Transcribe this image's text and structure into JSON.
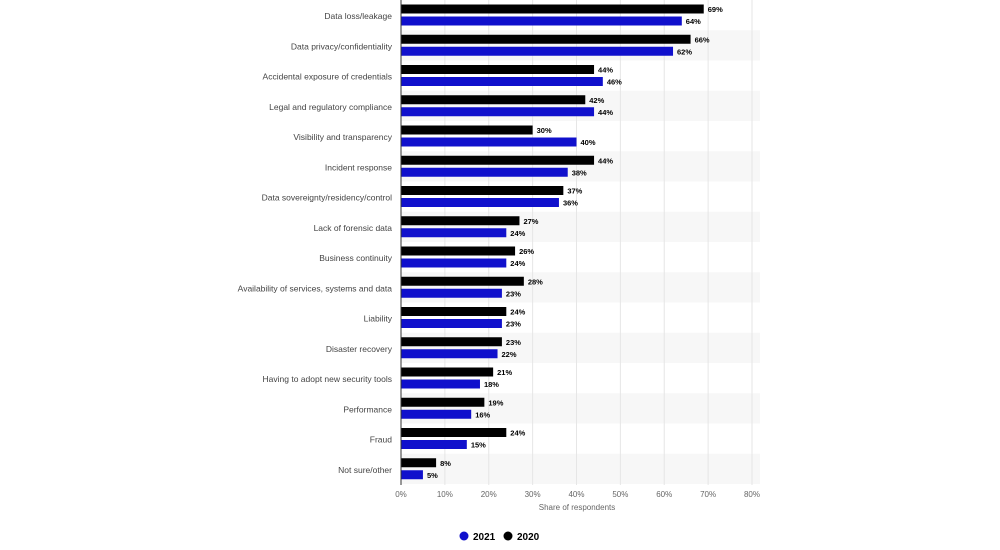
{
  "chart_data": {
    "type": "bar",
    "orientation": "horizontal",
    "categories": [
      "Data loss/leakage",
      "Data privacy/confidentiality",
      "Accidental exposure of credentials",
      "Legal and regulatory compliance",
      "Visibility and transparency",
      "Incident response",
      "Data sovereignty/residency/control",
      "Lack of forensic data",
      "Business continuity",
      "Availability of services, systems and data",
      "Liability",
      "Disaster recovery",
      "Having to adopt new security tools",
      "Performance",
      "Fraud",
      "Not sure/other"
    ],
    "series": [
      {
        "name": "2020",
        "color": "#000000",
        "values": [
          69,
          66,
          44,
          42,
          30,
          44,
          37,
          27,
          26,
          28,
          24,
          23,
          21,
          19,
          24,
          8
        ]
      },
      {
        "name": "2021",
        "color": "#1010cc",
        "values": [
          64,
          62,
          46,
          44,
          40,
          38,
          36,
          24,
          24,
          23,
          23,
          22,
          18,
          16,
          15,
          5
        ]
      }
    ],
    "xlabel": "Share of respondents",
    "xlim": [
      0,
      80
    ],
    "xticks": [
      "0%",
      "10%",
      "20%",
      "30%",
      "40%",
      "50%",
      "60%",
      "70%",
      "80%"
    ],
    "value_suffix": "%",
    "grid": true,
    "legend_position": "bottom",
    "legend": [
      "2021",
      "2020"
    ]
  }
}
